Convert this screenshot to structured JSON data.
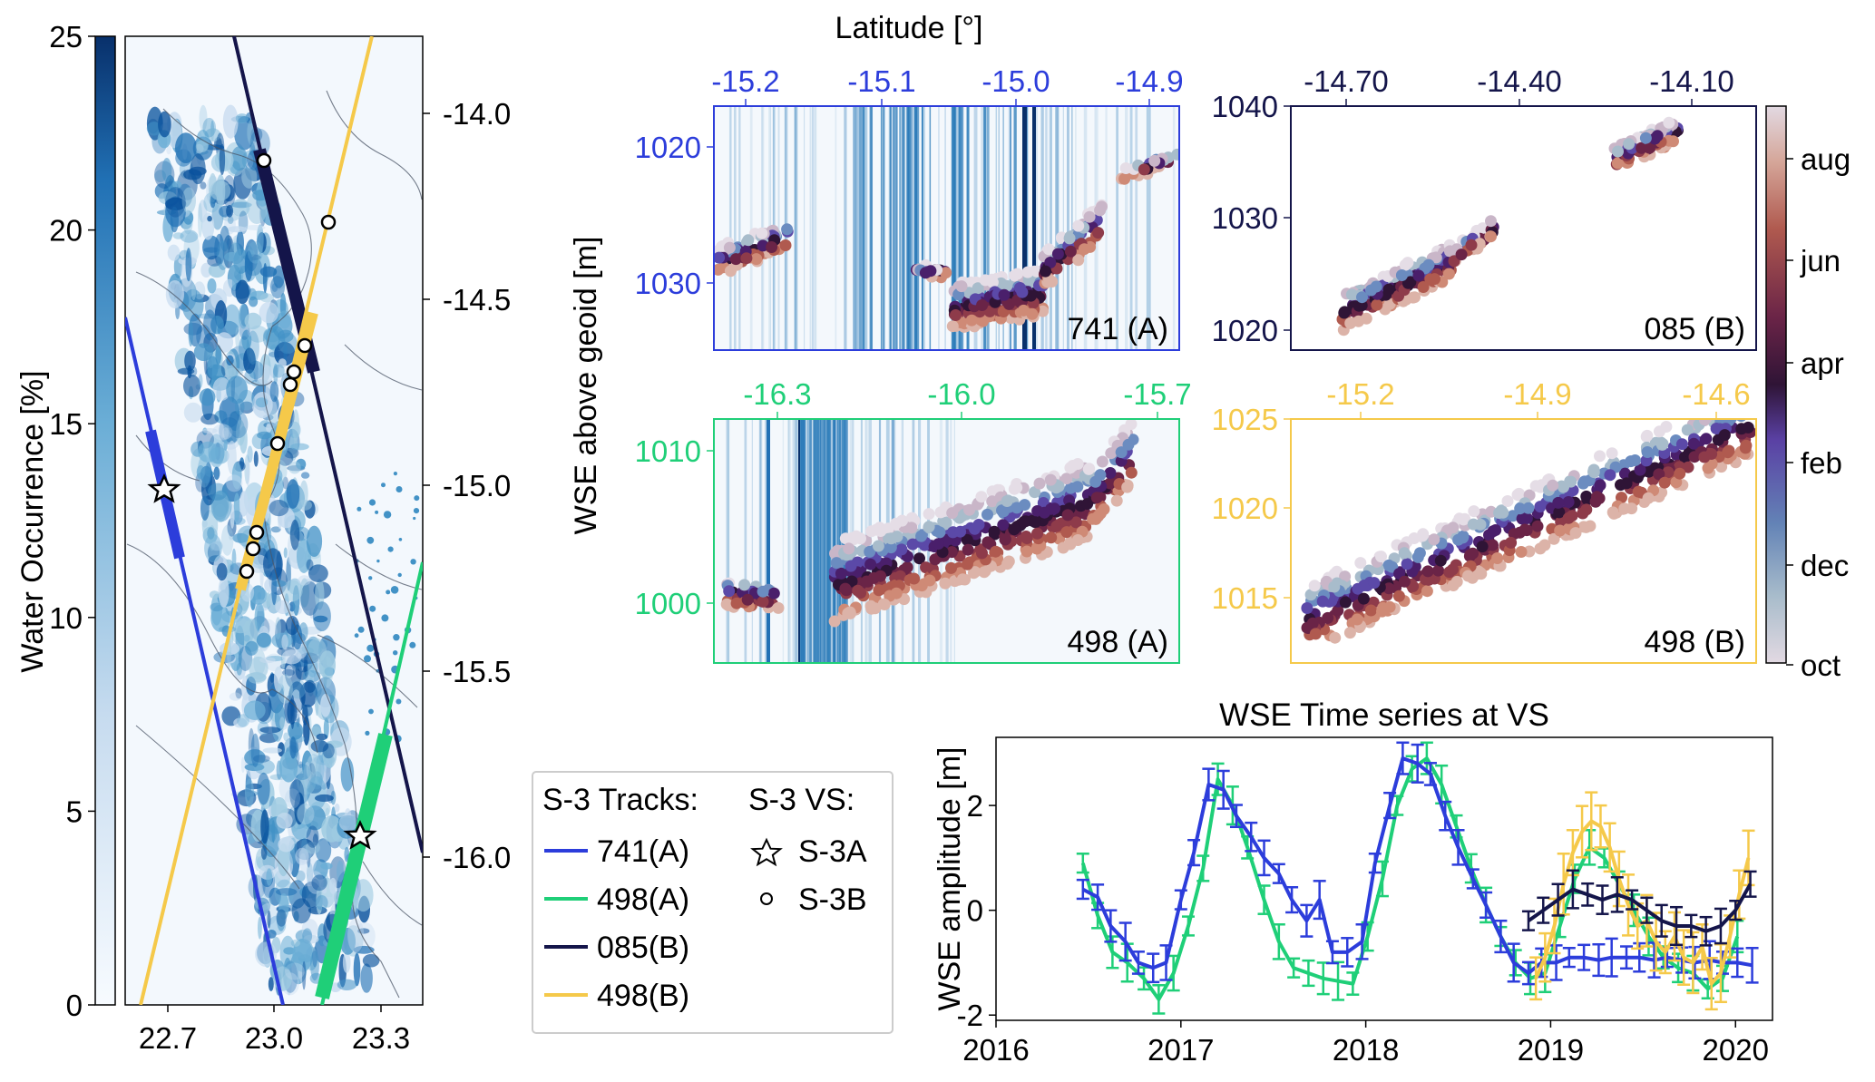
{
  "colors": {
    "track741A": "#2c3ddb",
    "track498A": "#1fcf78",
    "track085B": "#14154a",
    "track498B": "#f5c94a"
  },
  "map_panel": {
    "colorbar_label": "Water Occurrence [%]",
    "colorbar_ticks": [
      "0",
      "5",
      "10",
      "15",
      "20",
      "25"
    ],
    "x_ticks": [
      "22.7",
      "23.0",
      "23.3"
    ],
    "y_ticks_right": [
      "-14.0",
      "-14.5",
      "-15.0",
      "-15.5",
      "-16.0"
    ]
  },
  "profiles": {
    "shared_ylabel": "WSE above geoid [m]",
    "top_xlabel": "Latitude [°]",
    "colorbar_ticks": [
      "aug",
      "jun",
      "apr",
      "feb",
      "dec",
      "oct"
    ],
    "p741A": {
      "label": "741 (A)",
      "x_ticks": [
        "-15.2",
        "-15.1",
        "-15.0",
        "-14.9"
      ],
      "y_ticks": [
        "1020",
        "1030"
      ]
    },
    "p085B": {
      "label": "085 (B)",
      "x_ticks": [
        "-14.70",
        "-14.40",
        "-14.10"
      ],
      "y_ticks": [
        "1020",
        "1030",
        "1040"
      ]
    },
    "p498A": {
      "label": "498 (A)",
      "x_ticks": [
        "-16.3",
        "-16.0",
        "-15.7"
      ],
      "y_ticks": [
        "1000",
        "1010"
      ]
    },
    "p498B": {
      "label": "498 (B)",
      "x_ticks": [
        "-15.2",
        "-14.9",
        "-14.6"
      ],
      "y_ticks": [
        "1015",
        "1020",
        "1025"
      ]
    }
  },
  "legend": {
    "tracks_title": "S-3 Tracks:",
    "vs_title": "S-3 VS:",
    "tracks": [
      "741(A)",
      "498(A)",
      "085(B)",
      "498(B)"
    ],
    "vs": [
      "S-3A",
      "S-3B"
    ]
  },
  "chart_data": [
    {
      "type": "line",
      "title": "WSE Time series at VS",
      "xlabel": "",
      "ylabel": "WSE amplitude [m]",
      "xlim": [
        2016,
        2020.2
      ],
      "ylim": [
        -2.1,
        3.3
      ],
      "x_ticks": [
        "2016",
        "2017",
        "2018",
        "2019",
        "2020"
      ],
      "y_ticks": [
        "-2",
        "0",
        "2"
      ],
      "series": [
        {
          "name": "741(A)",
          "x": [
            2016.47,
            2016.55,
            2016.62,
            2016.7,
            2016.77,
            2016.85,
            2016.92,
            2017.0,
            2017.07,
            2017.15,
            2017.23,
            2017.3,
            2017.38,
            2017.45,
            2017.53,
            2017.6,
            2017.68,
            2017.75,
            2017.82,
            2017.9,
            2017.98,
            2018.05,
            2018.13,
            2018.2,
            2018.28,
            2018.35,
            2018.43,
            2018.5,
            2018.58,
            2018.65,
            2018.73,
            2018.8,
            2018.88,
            2018.95,
            2019.03,
            2019.1,
            2019.18,
            2019.26,
            2019.33,
            2019.41,
            2019.48,
            2019.56,
            2019.63,
            2019.71,
            2019.78,
            2019.86,
            2019.93,
            2020.01,
            2020.09
          ],
          "y": [
            0.4,
            0.25,
            -0.3,
            -0.6,
            -1.0,
            -1.1,
            -1.0,
            0.2,
            1.1,
            2.4,
            2.3,
            1.8,
            1.4,
            1.0,
            0.7,
            0.2,
            -0.2,
            0.2,
            -0.8,
            -0.8,
            -0.6,
            0.9,
            2.0,
            2.9,
            2.8,
            2.6,
            1.8,
            1.2,
            0.6,
            0.1,
            -0.5,
            -1.0,
            -1.2,
            -1.0,
            -1.0,
            -0.9,
            -0.9,
            -0.95,
            -0.9,
            -0.9,
            -0.9,
            -0.95,
            -0.9,
            -0.95,
            -1.0,
            -0.95,
            -1.0,
            -1.0,
            -1.05
          ]
        },
        {
          "name": "498(A)",
          "x": [
            2016.47,
            2016.55,
            2016.63,
            2016.71,
            2016.8,
            2016.88,
            2016.96,
            2017.04,
            2017.12,
            2017.2,
            2017.28,
            2017.36,
            2017.45,
            2017.53,
            2017.61,
            2017.69,
            2017.77,
            2017.85,
            2017.93,
            2018.01,
            2018.09,
            2018.17,
            2018.25,
            2018.33,
            2018.41,
            2018.49,
            2018.57,
            2018.65,
            2018.73,
            2018.81,
            2018.89,
            2018.97,
            2019.05,
            2019.13,
            2019.21,
            2019.29,
            2019.37,
            2019.45,
            2019.53,
            2019.61,
            2019.69,
            2019.77,
            2019.85,
            2019.93,
            2020.01
          ],
          "y": [
            0.9,
            -0.1,
            -0.8,
            -1.0,
            -1.3,
            -1.7,
            -1.2,
            -0.3,
            0.8,
            2.5,
            2.0,
            1.2,
            0.2,
            -0.6,
            -1.1,
            -1.2,
            -1.3,
            -1.35,
            -1.4,
            -0.5,
            0.6,
            2.0,
            2.7,
            2.9,
            2.4,
            1.6,
            0.8,
            0.1,
            -0.5,
            -1.0,
            -1.3,
            -1.2,
            -0.3,
            0.6,
            1.2,
            1.0,
            0.5,
            0.0,
            -0.5,
            -0.9,
            -1.1,
            -1.2,
            -1.5,
            -1.3,
            -0.5
          ]
        },
        {
          "name": "085(B)",
          "x": [
            2018.88,
            2018.96,
            2019.04,
            2019.12,
            2019.2,
            2019.28,
            2019.36,
            2019.44,
            2019.52,
            2019.6,
            2019.68,
            2019.76,
            2019.84,
            2019.92,
            2020.0,
            2020.08
          ],
          "y": [
            -0.2,
            0.0,
            0.2,
            0.4,
            0.3,
            0.2,
            0.3,
            0.2,
            0.0,
            -0.2,
            -0.3,
            -0.3,
            -0.4,
            -0.3,
            0.0,
            0.5
          ]
        },
        {
          "name": "498(B)",
          "x": [
            2018.92,
            2018.97,
            2019.02,
            2019.07,
            2019.12,
            2019.17,
            2019.22,
            2019.27,
            2019.32,
            2019.37,
            2019.42,
            2019.47,
            2019.52,
            2019.57,
            2019.62,
            2019.67,
            2019.72,
            2019.77,
            2019.82,
            2019.87,
            2019.92,
            2019.97,
            2020.02,
            2020.07
          ],
          "y": [
            -1.3,
            -0.9,
            -0.3,
            0.5,
            1.1,
            1.5,
            1.7,
            1.6,
            1.2,
            0.6,
            0.1,
            -0.3,
            -0.2,
            -0.6,
            -0.8,
            -0.5,
            -0.9,
            -1.0,
            -0.7,
            -1.4,
            -1.2,
            -0.5,
            0.3,
            1.0
          ]
        }
      ]
    }
  ]
}
